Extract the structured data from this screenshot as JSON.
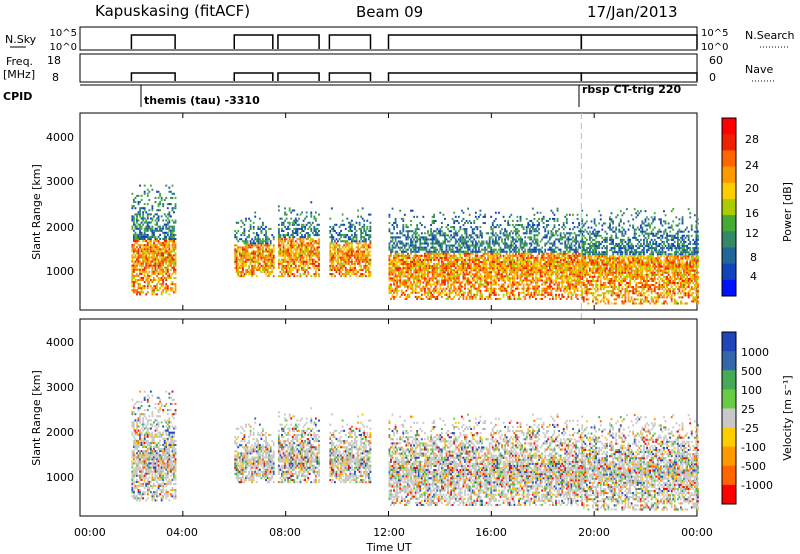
{
  "header": {
    "station": "Kapuskasing (fitACF)",
    "beam": "Beam 09",
    "date": "17/Jan/2013"
  },
  "top_panels": {
    "nsky_label": "N.Sky",
    "nsky_ticks": [
      "10^5",
      "10^0"
    ],
    "nsearch_ticks": [
      "10^5",
      "10^0"
    ],
    "nsearch_label": "N.Search",
    "freq_label_1": "Freq.",
    "freq_label_2": "[MHz]",
    "freq_ticks": [
      "18",
      "8"
    ],
    "nave_ticks": [
      "60",
      "0"
    ],
    "nave_label": "Nave",
    "cpid_label": "CPID",
    "cpid_1": "themis (tau) -3310",
    "cpid_2": "rbsp CT-trig 220"
  },
  "power_panel": {
    "ylabel": "Slant Range [km]",
    "yticks": [
      "4000",
      "3000",
      "2000",
      "1000"
    ],
    "colorbar_label": "Power [dB]",
    "colorbar_ticks": [
      "28",
      "24",
      "20",
      "16",
      "12",
      "8",
      "4"
    ],
    "colorbar_colors": [
      "#ff0000",
      "#ee2200",
      "#ff6600",
      "#ff9900",
      "#ffcc00",
      "#aacc00",
      "#44aa33",
      "#338866",
      "#226699",
      "#1144bb",
      "#0011ff"
    ]
  },
  "velocity_panel": {
    "ylabel": "Slant Range [km]",
    "yticks": [
      "4000",
      "3000",
      "2000",
      "1000"
    ],
    "colorbar_label": "Velocity [m s⁻¹]",
    "colorbar_ticks": [
      "1000",
      "500",
      "100",
      "25",
      "-25",
      "-100",
      "-500",
      "-1000"
    ],
    "colorbar_colors": [
      "#2244bb",
      "#3366aa",
      "#44aa55",
      "#66cc44",
      "#c8c8c8",
      "#ffcc00",
      "#ff9900",
      "#ff6600",
      "#ff0000"
    ]
  },
  "xaxis": {
    "label": "Time UT",
    "ticks": [
      "00:00",
      "04:00",
      "08:00",
      "12:00",
      "16:00",
      "20:00",
      "00:00"
    ]
  },
  "chart_data": {
    "type": "heatmap",
    "xlabel": "Time UT",
    "ylabel": "Slant Range [km]",
    "xlim_hours": [
      0,
      24
    ],
    "ylim_km": [
      180,
      4500
    ],
    "scatter_echo_segments": [
      {
        "start_h": 2.0,
        "end_h": 3.7,
        "range_km": [
          500,
          2900
        ],
        "power_db": 14,
        "velocity": 25
      },
      {
        "start_h": 6.0,
        "end_h": 7.5,
        "range_km": [
          900,
          2300
        ],
        "power_db": 18,
        "velocity": -100
      },
      {
        "start_h": 7.7,
        "end_h": 9.3,
        "range_km": [
          900,
          2600
        ],
        "power_db": 18,
        "velocity": -100
      },
      {
        "start_h": 9.7,
        "end_h": 11.3,
        "range_km": [
          900,
          2400
        ],
        "power_db": 20,
        "velocity": 25
      },
      {
        "start_h": 12.0,
        "end_h": 19.5,
        "range_km": [
          400,
          2400
        ],
        "power_db": 16,
        "velocity": 25
      },
      {
        "start_h": 19.5,
        "end_h": 24.0,
        "range_km": [
          300,
          2400
        ],
        "power_db": 14,
        "velocity": 25
      }
    ],
    "cpid_changes": [
      {
        "time_h": 2.0,
        "mode": "themis (tau) -3310"
      },
      {
        "time_h": 19.5,
        "mode": "rbsp CT-trig 220"
      }
    ]
  }
}
